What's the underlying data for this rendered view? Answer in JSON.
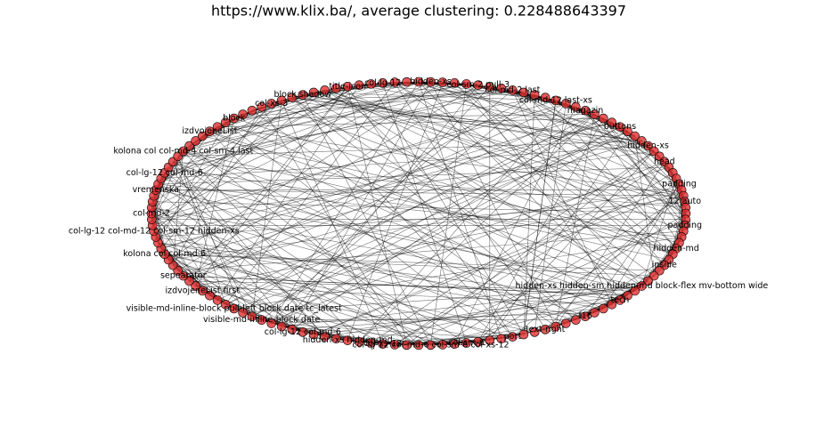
{
  "header": {
    "title": "https://www.klix.ba/, average clustering: 0.228488643397"
  },
  "nodes": [
    {
      "label": "hidden-xs"
    },
    {
      "label": "col-sm-2 pull-3"
    },
    {
      "label": "col-md-2 last"
    },
    {
      "label": "col-md-12 last-xs"
    },
    {
      "label": "magazin"
    },
    {
      "label": "buttons"
    },
    {
      "label": "hidden-xs"
    },
    {
      "label": "head"
    },
    {
      "label": "padding"
    },
    {
      "label": "12 auto"
    },
    {
      "label": "padding"
    },
    {
      "label": "hidden-md"
    },
    {
      "label": "inside"
    },
    {
      "label": "hidden-xs hidden-sm hidden-md block-flex mv-bottom wide"
    },
    {
      "label": "tech"
    },
    {
      "label": "f16"
    },
    {
      "label": "text-right"
    },
    {
      "label": "port"
    },
    {
      "label": "col-sm-6"
    },
    {
      "label": "col-lg-12 col-md-6 col-sm-6 col-xs-12"
    },
    {
      "label": "col-xs-12"
    },
    {
      "label": "hidden-xs hidden-md"
    },
    {
      "label": "col-lg-12 col-md-6"
    },
    {
      "label": "visible-md-inline-block date"
    },
    {
      "label": "visible-md-inline-block pull-left block date tc_latest"
    },
    {
      "label": "izdvojeneList first"
    },
    {
      "label": "sepearator"
    },
    {
      "label": "kolona col col-md-6"
    },
    {
      "label": "col-lg-12 col-md-12 col-sm-12 hidden-xs"
    },
    {
      "label": "col-md-2"
    },
    {
      "label": "vremenska"
    },
    {
      "label": "col-lg-12 col-md-6"
    },
    {
      "label": "kolona col col-md-4 col-sm-4 last"
    },
    {
      "label": "izdvojeneList"
    },
    {
      "label": "block"
    },
    {
      "label": "col-xs-3"
    },
    {
      "label": "block shadow"
    },
    {
      "label": "title-icon"
    },
    {
      "label": "col-lg-12"
    }
  ]
}
